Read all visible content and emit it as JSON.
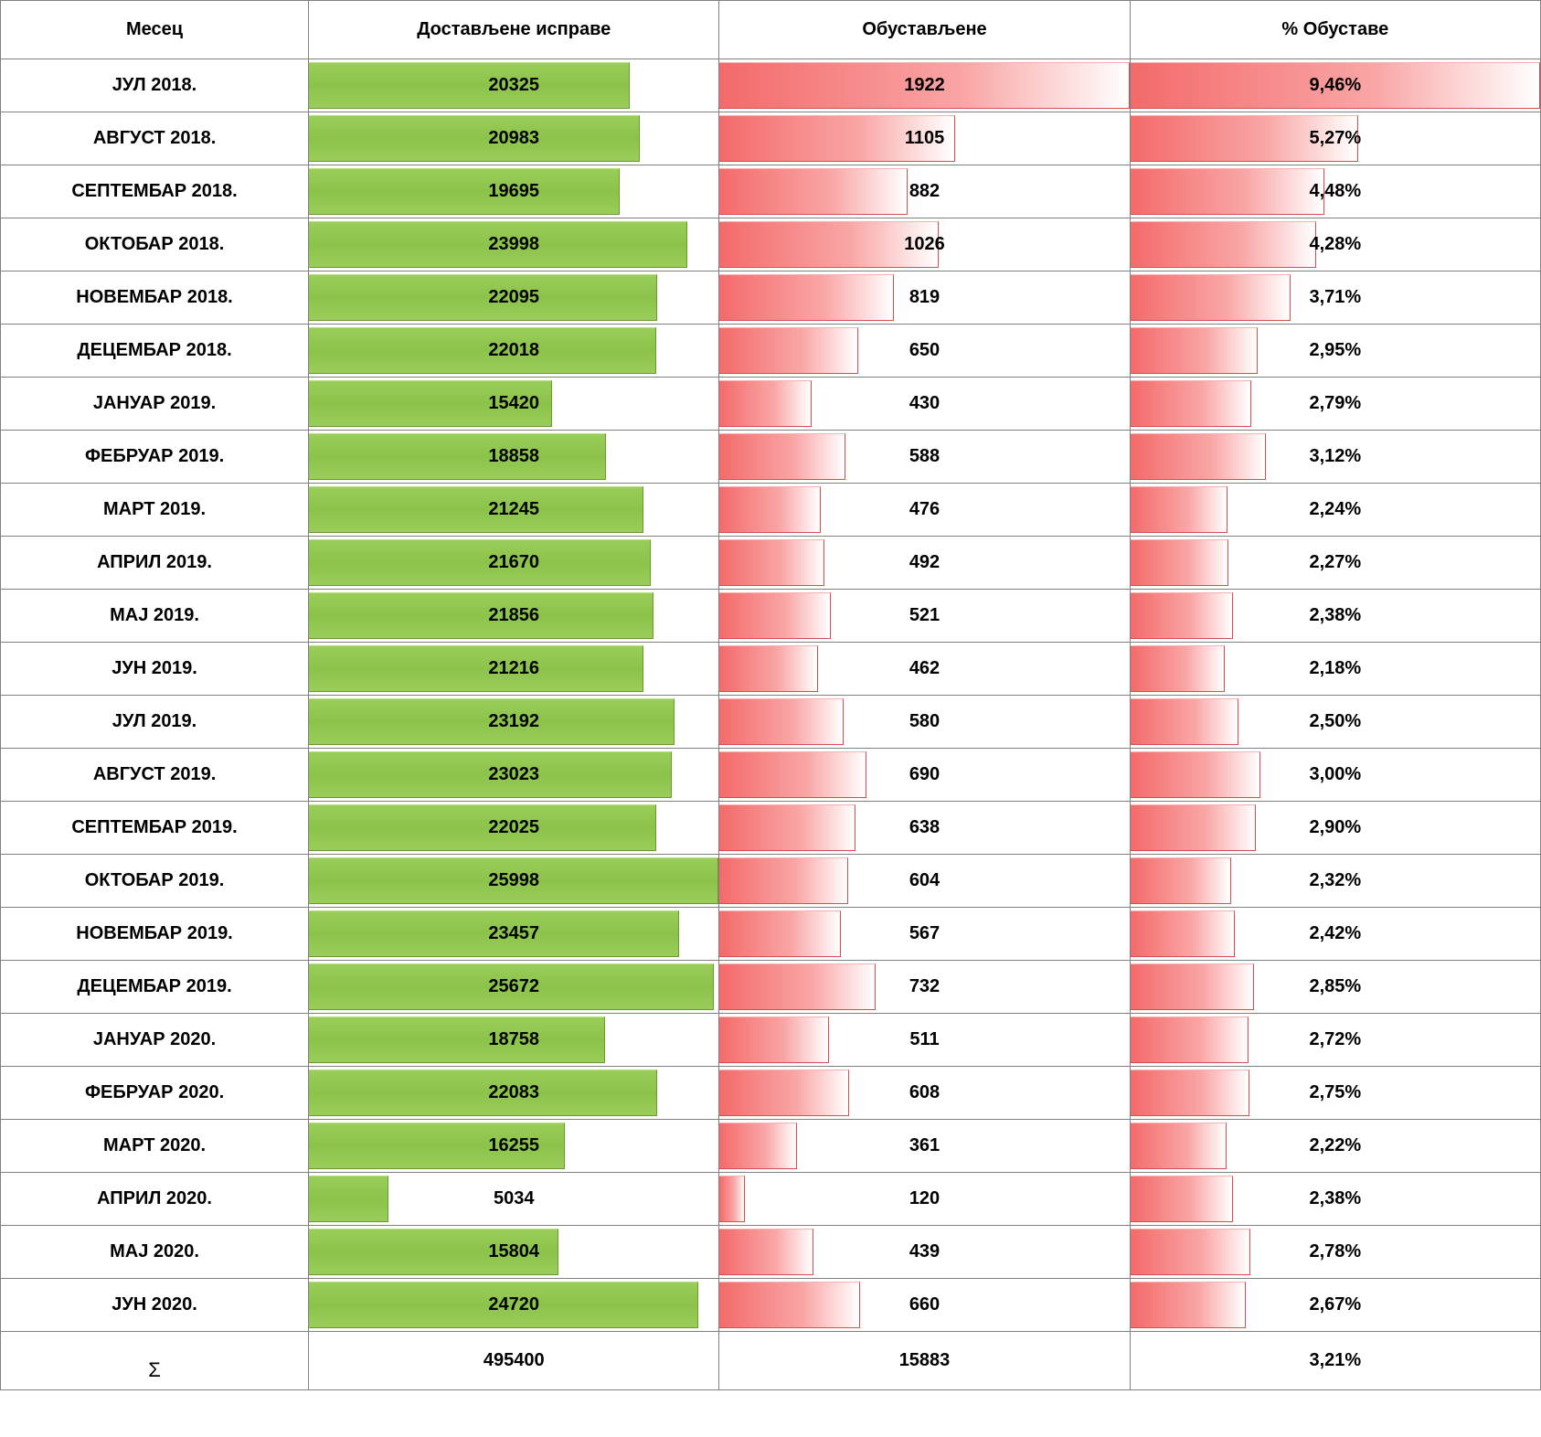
{
  "headers": {
    "month": "Месец",
    "delivered": "Достављене исправе",
    "suspended": "Обустављене",
    "pct": "% Обуставе"
  },
  "colors": {
    "green_bar_start": "#9acd5a",
    "green_bar_mid": "#8bc34a",
    "red_bar_start": "#f46a6a",
    "red_bar_mid": "#f9a6a6",
    "border": "#808080",
    "text": "#000000",
    "background": "#ffffff"
  },
  "scale": {
    "delivered_max": 25998,
    "suspended_max": 1922,
    "pct_max": 9.46
  },
  "rows": [
    {
      "month": "ЈУЛ 2018.",
      "delivered": 20325,
      "suspended": 1922,
      "pct": "9,46%",
      "pct_num": 9.46
    },
    {
      "month": "АВГУСТ 2018.",
      "delivered": 20983,
      "suspended": 1105,
      "pct": "5,27%",
      "pct_num": 5.27
    },
    {
      "month": "СЕПТЕМБАР 2018.",
      "delivered": 19695,
      "suspended": 882,
      "pct": "4,48%",
      "pct_num": 4.48
    },
    {
      "month": "ОКТОБАР 2018.",
      "delivered": 23998,
      "suspended": 1026,
      "pct": "4,28%",
      "pct_num": 4.28
    },
    {
      "month": "НОВЕМБАР 2018.",
      "delivered": 22095,
      "suspended": 819,
      "pct": "3,71%",
      "pct_num": 3.71
    },
    {
      "month": "ДЕЦЕМБАР 2018.",
      "delivered": 22018,
      "suspended": 650,
      "pct": "2,95%",
      "pct_num": 2.95
    },
    {
      "month": "ЈАНУАР 2019.",
      "delivered": 15420,
      "suspended": 430,
      "pct": "2,79%",
      "pct_num": 2.79
    },
    {
      "month": "ФЕБРУАР 2019.",
      "delivered": 18858,
      "suspended": 588,
      "pct": "3,12%",
      "pct_num": 3.12
    },
    {
      "month": "МАРТ 2019.",
      "delivered": 21245,
      "suspended": 476,
      "pct": "2,24%",
      "pct_num": 2.24
    },
    {
      "month": "АПРИЛ 2019.",
      "delivered": 21670,
      "suspended": 492,
      "pct": "2,27%",
      "pct_num": 2.27
    },
    {
      "month": "МАЈ 2019.",
      "delivered": 21856,
      "suspended": 521,
      "pct": "2,38%",
      "pct_num": 2.38
    },
    {
      "month": "ЈУН 2019.",
      "delivered": 21216,
      "suspended": 462,
      "pct": "2,18%",
      "pct_num": 2.18
    },
    {
      "month": "ЈУЛ 2019.",
      "delivered": 23192,
      "suspended": 580,
      "pct": "2,50%",
      "pct_num": 2.5
    },
    {
      "month": "АВГУСТ 2019.",
      "delivered": 23023,
      "suspended": 690,
      "pct": "3,00%",
      "pct_num": 3.0
    },
    {
      "month": "СЕПТЕМБАР 2019.",
      "delivered": 22025,
      "suspended": 638,
      "pct": "2,90%",
      "pct_num": 2.9
    },
    {
      "month": "ОКТОБАР 2019.",
      "delivered": 25998,
      "suspended": 604,
      "pct": "2,32%",
      "pct_num": 2.32
    },
    {
      "month": "НОВЕМБАР 2019.",
      "delivered": 23457,
      "suspended": 567,
      "pct": "2,42%",
      "pct_num": 2.42
    },
    {
      "month": "ДЕЦЕМБАР 2019.",
      "delivered": 25672,
      "suspended": 732,
      "pct": "2,85%",
      "pct_num": 2.85
    },
    {
      "month": "ЈАНУАР 2020.",
      "delivered": 18758,
      "suspended": 511,
      "pct": "2,72%",
      "pct_num": 2.72
    },
    {
      "month": "ФЕБРУАР 2020.",
      "delivered": 22083,
      "suspended": 608,
      "pct": "2,75%",
      "pct_num": 2.75
    },
    {
      "month": "МАРТ 2020.",
      "delivered": 16255,
      "suspended": 361,
      "pct": "2,22%",
      "pct_num": 2.22
    },
    {
      "month": "АПРИЛ 2020.",
      "delivered": 5034,
      "suspended": 120,
      "pct": "2,38%",
      "pct_num": 2.38
    },
    {
      "month": "МАЈ 2020.",
      "delivered": 15804,
      "suspended": 439,
      "pct": "2,78%",
      "pct_num": 2.78
    },
    {
      "month": "ЈУН 2020.",
      "delivered": 24720,
      "suspended": 660,
      "pct": "2,67%",
      "pct_num": 2.67
    }
  ],
  "sum": {
    "label": "Σ",
    "delivered": 495400,
    "suspended": 15883,
    "pct": "3,21%"
  }
}
